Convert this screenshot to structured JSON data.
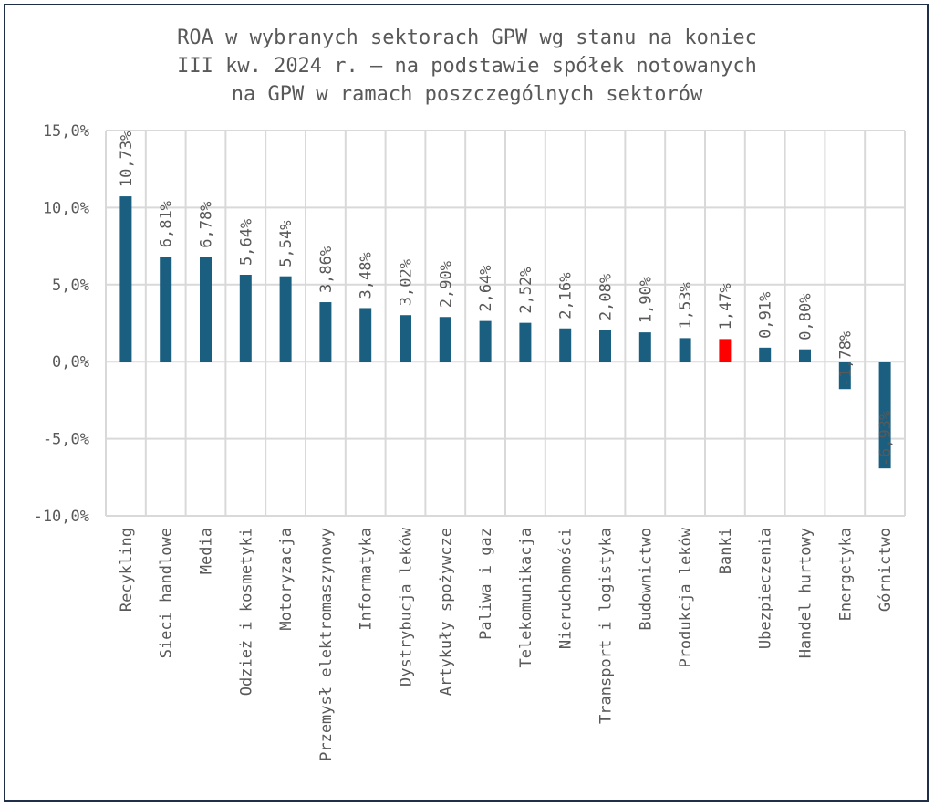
{
  "chart_data": {
    "type": "bar",
    "title_lines": [
      "ROA w wybranych sektorach GPW wg stanu na koniec",
      "III kw. 2024 r. – na podstawie spółek notowanych",
      "na GPW w ramach poszczególnych sektorów"
    ],
    "categories": [
      "Recykling",
      "Sieci handlowe",
      "Media",
      "Odzież i kosmetyki",
      "Motoryzacja",
      "Przemysł elektromaszynowy",
      "Informatyka",
      "Dystrybucja leków",
      "Artykuły spożywcze",
      "Paliwa i gaz",
      "Telekomunikacja",
      "Nieruchomości",
      "Transport i logistyka",
      "Budownictwo",
      "Produkcja leków",
      "Banki",
      "Ubezpieczenia",
      "Handel hurtowy",
      "Energetyka",
      "Górnictwo"
    ],
    "values": [
      10.73,
      6.81,
      6.78,
      5.64,
      5.54,
      3.86,
      3.48,
      3.02,
      2.9,
      2.64,
      2.52,
      2.16,
      2.08,
      1.9,
      1.53,
      1.47,
      0.91,
      0.8,
      -1.78,
      -6.93
    ],
    "data_labels": [
      "10,73%",
      "6,81%",
      "6,78%",
      "5,64%",
      "5,54%",
      "3,86%",
      "3,48%",
      "3,02%",
      "2,90%",
      "2,64%",
      "2,52%",
      "2,16%",
      "2,08%",
      "1,90%",
      "1,53%",
      "1,47%",
      "0,91%",
      "0,80%",
      "-1,78%",
      "-6,93%"
    ],
    "yticks": [
      15,
      10,
      5,
      0,
      -5,
      -10
    ],
    "ytick_labels": [
      "15,0%",
      "10,0%",
      "5,0%",
      "0,0%",
      "-5,0%",
      "-10,0%"
    ],
    "ylim": [
      -10,
      15
    ],
    "grid": true,
    "colors": {
      "bar": "#1a5e80",
      "highlight": "#ff0000",
      "grid": "#d9d9d9",
      "text": "#595959"
    },
    "highlight_category": "Banki"
  }
}
